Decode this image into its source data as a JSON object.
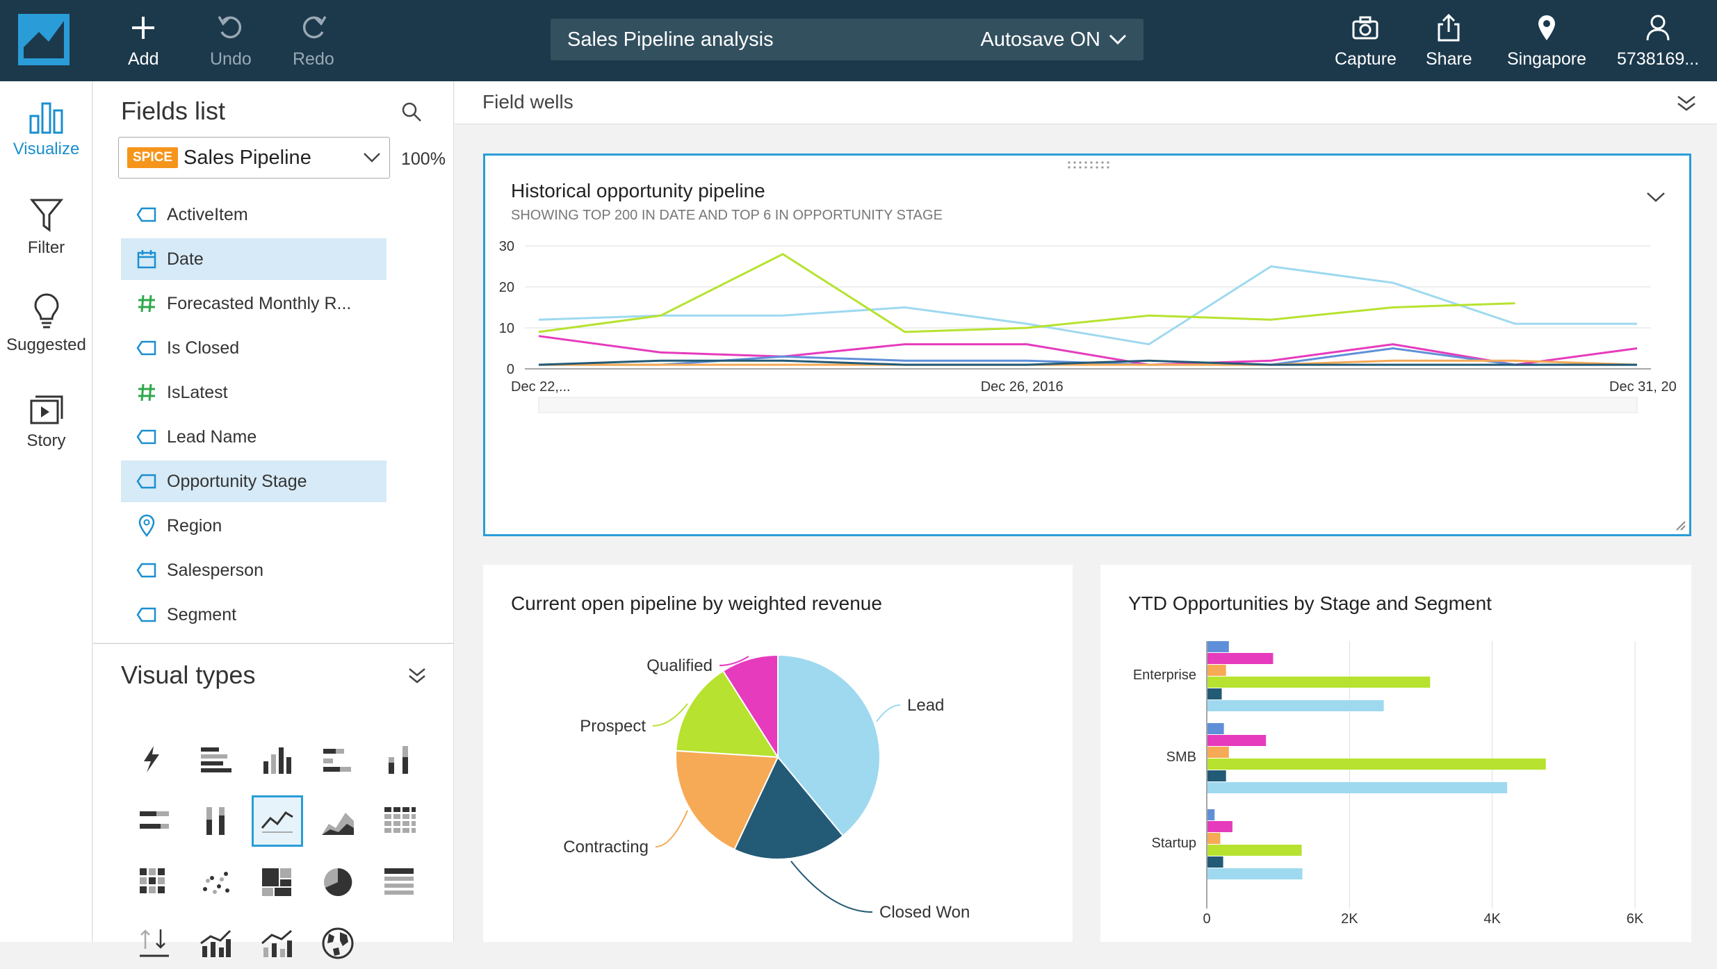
{
  "topbar": {
    "add_label": "Add",
    "undo_label": "Undo",
    "redo_label": "Redo",
    "analysis_title": "Sales Pipeline analysis",
    "autosave_label": "Autosave ON",
    "capture_label": "Capture",
    "share_label": "Share",
    "region_label": "Singapore",
    "account_label": "5738169..."
  },
  "rail": {
    "items": [
      {
        "label": "Visualize",
        "icon": "bar-chart-icon",
        "active": true
      },
      {
        "label": "Filter",
        "icon": "funnel-icon",
        "active": false
      },
      {
        "label": "Suggested",
        "icon": "lightbulb-icon",
        "active": false
      },
      {
        "label": "Story",
        "icon": "story-icon",
        "active": false
      }
    ]
  },
  "fields_panel": {
    "title": "Fields list",
    "dataset_badge": "SPICE",
    "dataset_name": "Sales Pipeline",
    "spice_percent": "100%",
    "fields": [
      {
        "label": "ActiveItem",
        "type": "dimension",
        "selected": false
      },
      {
        "label": "Date",
        "type": "date",
        "selected": true
      },
      {
        "label": "Forecasted Monthly R...",
        "type": "measure",
        "selected": false
      },
      {
        "label": "Is Closed",
        "type": "dimension",
        "selected": false
      },
      {
        "label": "IsLatest",
        "type": "measure",
        "selected": false
      },
      {
        "label": "Lead Name",
        "type": "dimension",
        "selected": false
      },
      {
        "label": "Opportunity Stage",
        "type": "dimension",
        "selected": true
      },
      {
        "label": "Region",
        "type": "geo",
        "selected": false
      },
      {
        "label": "Salesperson",
        "type": "dimension",
        "selected": false
      },
      {
        "label": "Segment",
        "type": "dimension",
        "selected": false
      }
    ]
  },
  "visual_types": {
    "title": "Visual types",
    "items": [
      "autograph",
      "horizontal-bar",
      "vertical-bar",
      "horizontal-stacked-bar",
      "vertical-stacked-bar",
      "horizontal-100-bar",
      "vertical-100-bar",
      "line",
      "area-line",
      "pivot-table",
      "heat-map",
      "scatter-plot",
      "tree-map",
      "pie",
      "table",
      "kpi",
      "combo-chart",
      "combo-line-chart",
      "geo-map"
    ],
    "selected": "line"
  },
  "field_wells": {
    "label": "Field wells"
  },
  "colors": {
    "lightblue": "#9ed9ef",
    "lime": "#b7e22f",
    "magenta": "#e63bbd",
    "orange": "#f6aa55",
    "navy": "#235a76",
    "blue": "#5f8fd9",
    "accent": "#2a9dd8",
    "topbar": "#1c394c"
  },
  "chart_data": [
    {
      "type": "line",
      "title": "Historical opportunity pipeline",
      "subtitle": "SHOWING TOP 200 IN DATE AND TOP 6 IN OPPORTUNITY STAGE",
      "x_tick_labels": [
        "Dec 22,...",
        "Dec 26, 2016",
        "Dec 31, 20"
      ],
      "y_ticks": [
        0,
        10,
        20,
        30
      ],
      "ylim": [
        0,
        30
      ],
      "grid": true,
      "series": [
        {
          "color": "lightblue",
          "values": [
            12,
            13,
            13,
            15,
            11,
            6,
            25,
            21,
            11,
            11
          ]
        },
        {
          "color": "lime",
          "values": [
            9,
            13,
            28,
            9,
            10,
            13,
            12,
            15,
            16,
            null
          ]
        },
        {
          "color": "magenta",
          "values": [
            8,
            4,
            3,
            6,
            6,
            1,
            2,
            6,
            1,
            5
          ]
        },
        {
          "color": "blue",
          "values": [
            1,
            1,
            3,
            2,
            2,
            1,
            1,
            5,
            1,
            1
          ]
        },
        {
          "color": "orange",
          "values": [
            1,
            1,
            1,
            1,
            1,
            1,
            1,
            2,
            2,
            1
          ]
        },
        {
          "color": "navy",
          "values": [
            1,
            2,
            2,
            1,
            1,
            2,
            1,
            1,
            1,
            1
          ]
        }
      ]
    },
    {
      "type": "pie",
      "title": "Current open pipeline by weighted revenue",
      "slices": [
        {
          "label": "Lead",
          "value": 39,
          "color": "lightblue"
        },
        {
          "label": "Closed Won",
          "value": 18,
          "color": "navy"
        },
        {
          "label": "Contracting",
          "value": 19,
          "color": "orange"
        },
        {
          "label": "Prospect",
          "value": 15,
          "color": "lime"
        },
        {
          "label": "Qualified",
          "value": 9,
          "color": "magenta"
        }
      ]
    },
    {
      "type": "bar",
      "orientation": "horizontal",
      "title": "YTD Opportunities by Stage and Segment",
      "categories": [
        "Enterprise",
        "SMB",
        "Startup"
      ],
      "x_ticks": [
        "0",
        "2K",
        "4K",
        "6K"
      ],
      "xlim": [
        0,
        6000
      ],
      "grid": true,
      "series": [
        {
          "color": "blue",
          "values": [
            300,
            230,
            100
          ]
        },
        {
          "color": "magenta",
          "values": [
            920,
            820,
            350
          ]
        },
        {
          "color": "orange",
          "values": [
            260,
            300,
            180
          ]
        },
        {
          "color": "lime",
          "values": [
            3120,
            4740,
            1320
          ]
        },
        {
          "color": "navy",
          "values": [
            200,
            260,
            220
          ]
        },
        {
          "color": "lightblue",
          "values": [
            2470,
            4200,
            1330
          ]
        }
      ]
    }
  ]
}
